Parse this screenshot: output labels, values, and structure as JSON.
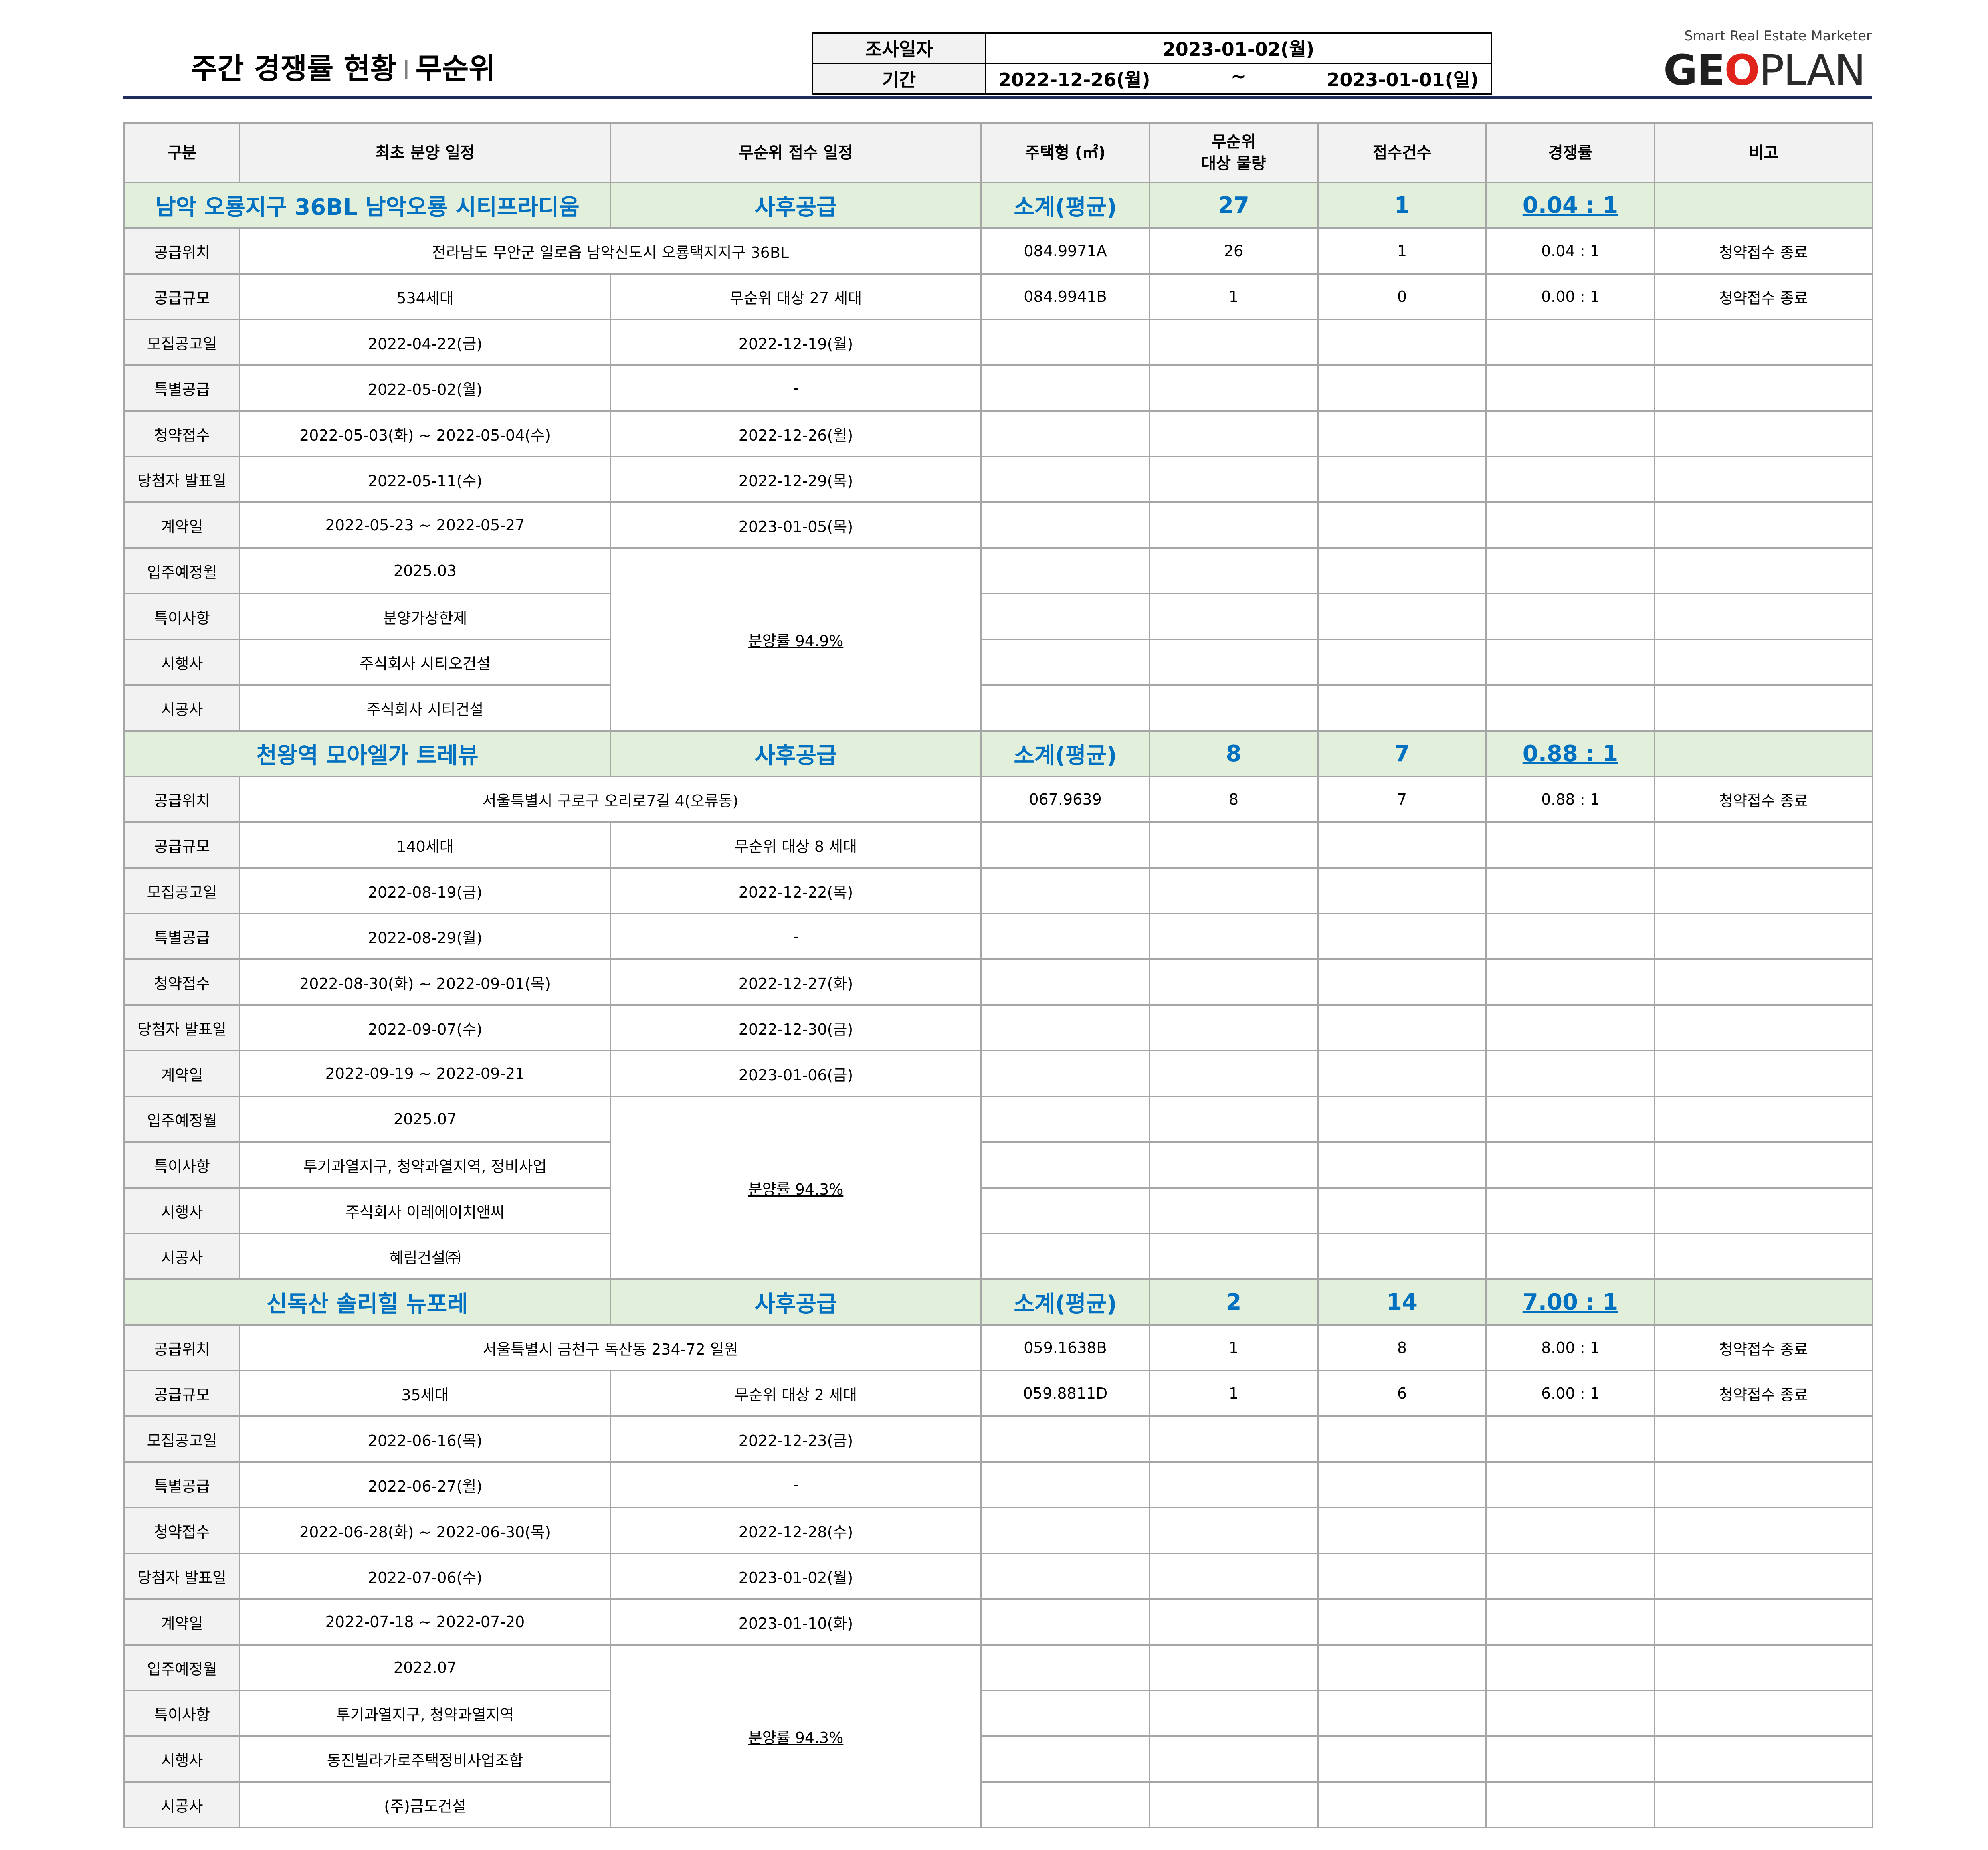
{
  "header": {
    "title_main": "주간 경쟁률 현황",
    "title_sep": "I",
    "title_sub": "무순위",
    "survey_label": "조사일자",
    "survey_date": "2023-01-02(월)",
    "period_label": "기간",
    "period_from": "2022-12-26(월)",
    "period_tilde": "~",
    "period_to": "2023-01-01(일)"
  },
  "logo": {
    "tagline": "Smart Real Estate Marketer",
    "brand_g": "G",
    "brand_e": "E",
    "brand_o": "O",
    "brand_plan": "PLAN"
  },
  "columns": [
    "구분",
    "최초 분양 일정",
    "무순위 접수 일정",
    "주택형 (㎡)",
    "무순위\n대상 물량",
    "접수건수",
    "경쟁률",
    "비고"
  ],
  "row_labels": [
    "공급위치",
    "공급규모",
    "모집공고일",
    "특별공급",
    "청약접수",
    "당첨자 발표일",
    "계약일",
    "입주예정월",
    "특이사항",
    "시행사",
    "시공사"
  ],
  "sections": [
    {
      "name": "남악 오룡지구 36BL 남악오룡 시티프라디움",
      "type": "사후공급",
      "subtotal_label": "소계(평균)",
      "subtotal_units": "27",
      "subtotal_apps": "1",
      "subtotal_rate": "0.04 : 1",
      "location": "전라남도 무안군 일로읍 남악신도시 오룡택지지구 36BL",
      "scale_initial": "534세대",
      "scale_unranked": "무순위 대상 27 세대",
      "notice_initial": "2022-04-22(금)",
      "notice_unranked": "2022-12-19(월)",
      "special_initial": "2022-05-02(월)",
      "special_unranked": "-",
      "apply_initial": "2022-05-03(화)  ~  2022-05-04(수)",
      "apply_unranked": "2022-12-26(월)",
      "winner_initial": "2022-05-11(수)",
      "winner_unranked": "2022-12-29(목)",
      "contract_initial": "2022-05-23 ~ 2022-05-27",
      "contract_unranked": "2023-01-05(목)",
      "move_in": "2025.03",
      "special_note": "분양가상한제",
      "developer": "주식회사 시티오건설",
      "builder": "주식회사 시티건설",
      "sales_rate": "분양률 94.9%",
      "types": [
        {
          "type": "084.9971A",
          "units": "26",
          "apps": "1",
          "rate": "0.04 : 1",
          "note": "청약접수 종료"
        },
        {
          "type": "084.9941B",
          "units": "1",
          "apps": "0",
          "rate": "0.00 : 1",
          "note": "청약접수 종료"
        }
      ]
    },
    {
      "name": "천왕역 모아엘가 트레뷰",
      "type": "사후공급",
      "subtotal_label": "소계(평균)",
      "subtotal_units": "8",
      "subtotal_apps": "7",
      "subtotal_rate": "0.88 : 1",
      "location": "서울특별시 구로구 오리로7길 4(오류동)",
      "scale_initial": "140세대",
      "scale_unranked": "무순위 대상 8 세대",
      "notice_initial": "2022-08-19(금)",
      "notice_unranked": "2022-12-22(목)",
      "special_initial": "2022-08-29(월)",
      "special_unranked": "-",
      "apply_initial": "2022-08-30(화)  ~  2022-09-01(목)",
      "apply_unranked": "2022-12-27(화)",
      "winner_initial": "2022-09-07(수)",
      "winner_unranked": "2022-12-30(금)",
      "contract_initial": "2022-09-19 ~ 2022-09-21",
      "contract_unranked": "2023-01-06(금)",
      "move_in": "2025.07",
      "special_note": "투기과열지구, 청약과열지역, 정비사업",
      "developer": "주식회사 이레에이치앤씨",
      "builder": "혜림건설㈜",
      "sales_rate": "분양률 94.3%",
      "types": [
        {
          "type": "067.9639",
          "units": "8",
          "apps": "7",
          "rate": "0.88 : 1",
          "note": "청약접수 종료"
        }
      ]
    },
    {
      "name": "신독산 솔리힐 뉴포레",
      "type": "사후공급",
      "subtotal_label": "소계(평균)",
      "subtotal_units": "2",
      "subtotal_apps": "14",
      "subtotal_rate": "7.00 : 1",
      "location": "서울특별시 금천구 독산동 234-72 일원",
      "scale_initial": "35세대",
      "scale_unranked": "무순위 대상 2 세대",
      "notice_initial": "2022-06-16(목)",
      "notice_unranked": "2022-12-23(금)",
      "special_initial": "2022-06-27(월)",
      "special_unranked": "-",
      "apply_initial": "2022-06-28(화)  ~  2022-06-30(목)",
      "apply_unranked": "2022-12-28(수)",
      "winner_initial": "2022-07-06(수)",
      "winner_unranked": "2023-01-02(월)",
      "contract_initial": "2022-07-18 ~ 2022-07-20",
      "contract_unranked": "2023-01-10(화)",
      "move_in": "2022.07",
      "special_note": "투기과열지구, 청약과열지역",
      "developer": "동진빌라가로주택정비사업조합",
      "builder": "(주)금도건설",
      "sales_rate": "분양률 94.3%",
      "types": [
        {
          "type": "059.1638B",
          "units": "1",
          "apps": "8",
          "rate": "8.00 : 1",
          "note": "청약접수 종료"
        },
        {
          "type": "059.8811D",
          "units": "1",
          "apps": "6",
          "rate": "6.00 : 1",
          "note": "청약접수 종료"
        }
      ]
    }
  ]
}
